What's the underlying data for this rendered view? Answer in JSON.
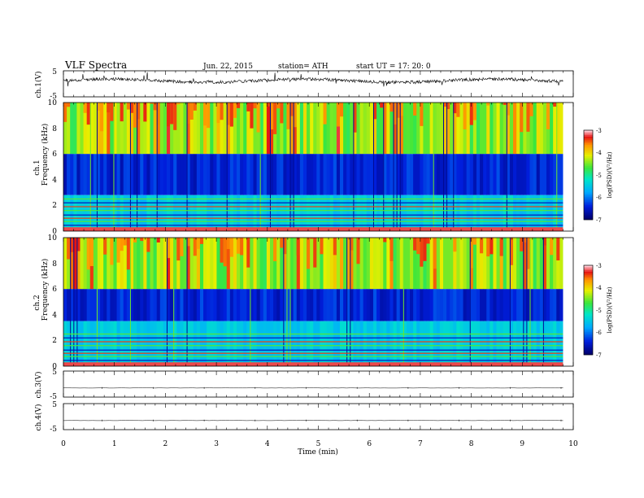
{
  "header": {
    "title": "VLF  Spectra",
    "date": "Jun. 22, 2015",
    "station": "station= ATH",
    "start": "start  UT  =    17: 20: 0"
  },
  "chart_data": [
    {
      "type": "line",
      "panel": "ch1-waveform",
      "ylabel": "ch.1(V)",
      "ylim": [
        -5,
        5
      ],
      "y_ticks": [
        "5",
        "-5"
      ],
      "trace_mean_v": 1.2,
      "trace_color": "#000000"
    },
    {
      "type": "heatmap",
      "panel": "ch1-spectrogram",
      "ylabel_top": "ch.1",
      "ylabel": "Frequency  (kHz)",
      "ylim": [
        0,
        10
      ],
      "y_ticks": [
        "10",
        "8",
        "6",
        "4",
        "2",
        "0"
      ],
      "dark_band_khz": [
        2.8,
        6.0
      ],
      "top_band_khz": [
        6.0,
        10.0
      ],
      "colorbar": {
        "label": "log(PSD)(V²/Hz)",
        "range": [
          -7,
          -3
        ],
        "ticks": [
          "-3",
          "-4",
          "-5",
          "-6",
          "-7"
        ]
      }
    },
    {
      "type": "heatmap",
      "panel": "ch2-spectrogram",
      "ylabel_top": "ch.2",
      "ylabel": "Frequency  (kHz)",
      "ylim": [
        0,
        10
      ],
      "y_ticks": [
        "10",
        "8",
        "6",
        "4",
        "2",
        "0"
      ],
      "dark_band_khz": [
        3.5,
        6.0
      ],
      "top_band_khz": [
        6.0,
        10.0
      ],
      "colorbar": {
        "label": "log(PSD)(V²/Hz)",
        "range": [
          -7,
          -3
        ],
        "ticks": [
          "-3",
          "-4",
          "-5",
          "-6",
          "-7"
        ]
      }
    },
    {
      "type": "line",
      "panel": "ch3-waveform",
      "ylabel": "ch.3(V)",
      "ylim": [
        -5,
        5
      ],
      "y_ticks": [
        "5",
        "-5"
      ],
      "trace_mean_v": -1.5,
      "trace_color": "#000000"
    },
    {
      "type": "line",
      "panel": "ch4-waveform",
      "ylabel": "ch.4(V)",
      "ylim": [
        -5,
        5
      ],
      "y_ticks": [
        "5",
        "-5"
      ],
      "trace_mean_v": -1.5,
      "trace_color": "#000000"
    }
  ],
  "x_axis": {
    "label": "Time  (min)",
    "xlim": [
      0,
      10
    ],
    "data_end_min": 9.8,
    "ticks": [
      "0",
      "1",
      "2",
      "3",
      "4",
      "5",
      "6",
      "7",
      "8",
      "9",
      "10"
    ]
  }
}
